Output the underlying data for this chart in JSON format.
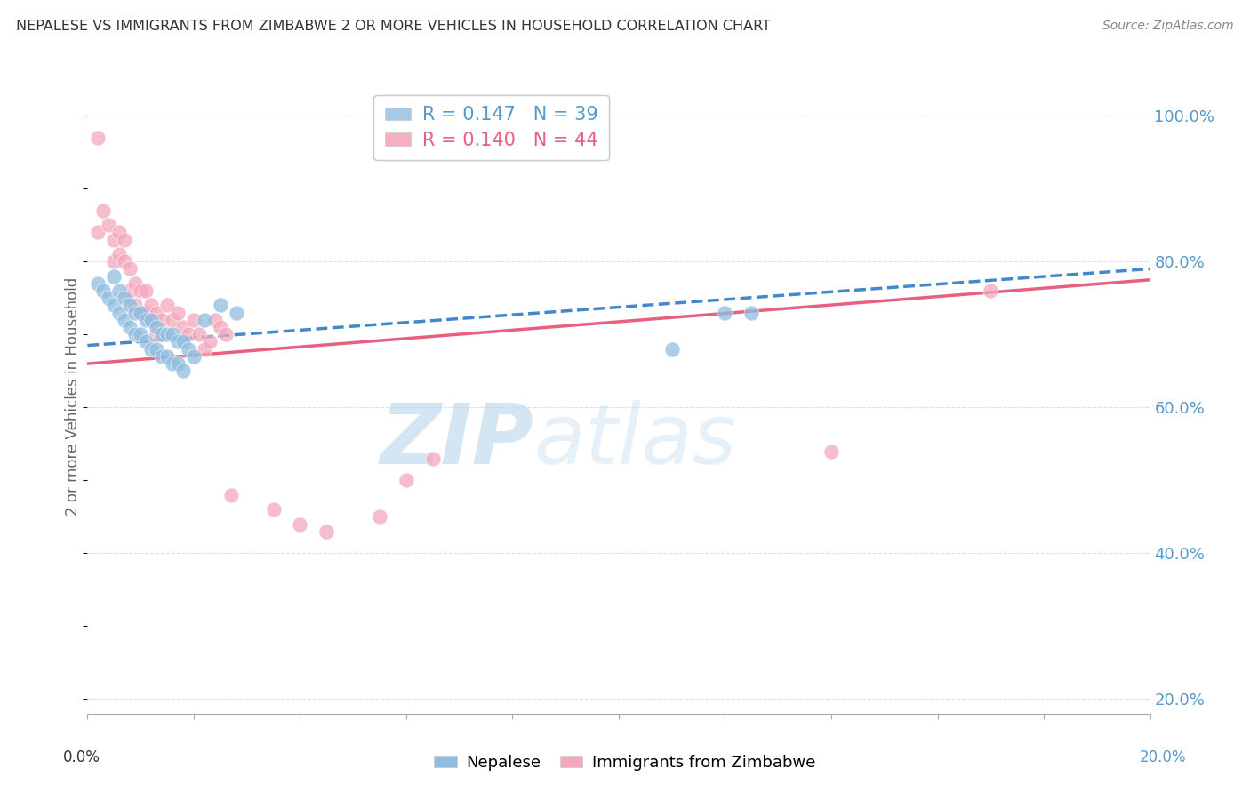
{
  "title": "NEPALESE VS IMMIGRANTS FROM ZIMBABWE 2 OR MORE VEHICLES IN HOUSEHOLD CORRELATION CHART",
  "source": "Source: ZipAtlas.com",
  "ylabel": "2 or more Vehicles in Household",
  "right_yticks": [
    "100.0%",
    "80.0%",
    "60.0%",
    "40.0%",
    "20.0%"
  ],
  "right_ytick_vals": [
    1.0,
    0.8,
    0.6,
    0.4,
    0.2
  ],
  "legend1_label": "R = 0.147   N = 39",
  "legend2_label": "R = 0.140   N = 44",
  "legend1_color": "#a8c8e8",
  "legend2_color": "#f4b0c0",
  "nepalese_color": "#90bde0",
  "zimbabwe_color": "#f4a8bc",
  "nepalese_line_color": "#4488cc",
  "zimbabwe_line_color": "#e86080",
  "watermark_zip": "ZIP",
  "watermark_atlas": "atlas",
  "nepalese_x": [
    0.002,
    0.003,
    0.004,
    0.005,
    0.005,
    0.006,
    0.006,
    0.007,
    0.007,
    0.008,
    0.008,
    0.009,
    0.009,
    0.01,
    0.01,
    0.011,
    0.011,
    0.012,
    0.012,
    0.013,
    0.013,
    0.014,
    0.014,
    0.015,
    0.015,
    0.016,
    0.016,
    0.017,
    0.017,
    0.018,
    0.018,
    0.019,
    0.02,
    0.022,
    0.025,
    0.028,
    0.11,
    0.12,
    0.125
  ],
  "nepalese_y": [
    0.77,
    0.76,
    0.75,
    0.78,
    0.74,
    0.76,
    0.73,
    0.75,
    0.72,
    0.74,
    0.71,
    0.73,
    0.7,
    0.73,
    0.7,
    0.72,
    0.69,
    0.72,
    0.68,
    0.71,
    0.68,
    0.7,
    0.67,
    0.7,
    0.67,
    0.7,
    0.66,
    0.69,
    0.66,
    0.69,
    0.65,
    0.68,
    0.67,
    0.72,
    0.74,
    0.73,
    0.68,
    0.73,
    0.73
  ],
  "zimbabwe_x": [
    0.002,
    0.002,
    0.003,
    0.004,
    0.005,
    0.005,
    0.006,
    0.006,
    0.007,
    0.007,
    0.008,
    0.008,
    0.009,
    0.009,
    0.01,
    0.01,
    0.011,
    0.011,
    0.012,
    0.012,
    0.013,
    0.013,
    0.014,
    0.015,
    0.016,
    0.017,
    0.018,
    0.019,
    0.02,
    0.021,
    0.022,
    0.023,
    0.024,
    0.025,
    0.026,
    0.027,
    0.035,
    0.04,
    0.045,
    0.055,
    0.06,
    0.065,
    0.14,
    0.17
  ],
  "zimbabwe_y": [
    0.97,
    0.84,
    0.87,
    0.85,
    0.83,
    0.8,
    0.84,
    0.81,
    0.83,
    0.8,
    0.79,
    0.76,
    0.77,
    0.74,
    0.76,
    0.73,
    0.76,
    0.73,
    0.74,
    0.72,
    0.73,
    0.7,
    0.72,
    0.74,
    0.72,
    0.73,
    0.71,
    0.7,
    0.72,
    0.7,
    0.68,
    0.69,
    0.72,
    0.71,
    0.7,
    0.48,
    0.46,
    0.44,
    0.43,
    0.45,
    0.5,
    0.53,
    0.54,
    0.76
  ],
  "nep_line_x": [
    0.0,
    0.2
  ],
  "nep_line_y": [
    0.685,
    0.79
  ],
  "zim_line_x": [
    0.0,
    0.2
  ],
  "zim_line_y": [
    0.66,
    0.775
  ],
  "xlim": [
    0.0,
    0.2
  ],
  "ylim": [
    0.18,
    1.05
  ],
  "grid_color": "#e0e0e0",
  "bottom_line_color": "#aaaaaa",
  "title_color": "#333333",
  "source_color": "#888888",
  "ytick_color": "#5599cc",
  "bg_color": "#ffffff"
}
